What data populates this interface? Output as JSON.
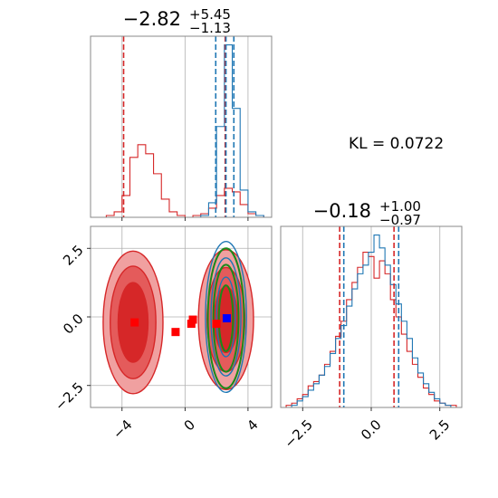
{
  "colors": {
    "red": "#d62728",
    "blue": "#1f77b4",
    "green": "#1a8a1a",
    "blue_marker": "#0000ff",
    "red_marker": "#ff0000",
    "grid": "#b0b0b0"
  },
  "annotation": {
    "kl_text": "KL = 0.0722"
  },
  "chart_data": [
    {
      "type": "histogram",
      "panel": "top-left marginal (parameter 1)",
      "title": {
        "value": "−2.82",
        "upper": "+5.45",
        "lower": "−1.13"
      },
      "xlim": [
        -6,
        5.5
      ],
      "grid": true,
      "series": [
        {
          "color": "red",
          "bin_edges": [
            -6,
            -5.5,
            -5,
            -4.5,
            -4,
            -3.5,
            -3,
            -2.5,
            -2,
            -1.5,
            -1,
            -0.5,
            0,
            0.5,
            1,
            1.5,
            2,
            2.5,
            3,
            3.5,
            4,
            4.5,
            5,
            5.5
          ],
          "counts": [
            0,
            0,
            1,
            3,
            12,
            33,
            40,
            35,
            24,
            10,
            3,
            1,
            0,
            1,
            2,
            5,
            12,
            16,
            14,
            7,
            2,
            1,
            0
          ]
        },
        {
          "color": "blue",
          "bin_edges": [
            -6,
            -5.5,
            -5,
            -4.5,
            -4,
            -3.5,
            -3,
            -2.5,
            -2,
            -1.5,
            -1,
            -0.5,
            0,
            0.5,
            1,
            1.5,
            2,
            2.5,
            3,
            3.5,
            4,
            4.5,
            5,
            5.5
          ],
          "counts": [
            0,
            0,
            0,
            0,
            0,
            0,
            0,
            0,
            0,
            0,
            0,
            0,
            0,
            0,
            1,
            8,
            50,
            95,
            60,
            15,
            3,
            1,
            0
          ]
        }
      ],
      "vlines": [
        {
          "color": "red",
          "x": -3.9
        },
        {
          "color": "red",
          "x": 2.55
        },
        {
          "color": "blue",
          "x": 1.95
        },
        {
          "color": "blue",
          "x": 2.6
        },
        {
          "color": "blue",
          "x": 3.1
        }
      ]
    },
    {
      "type": "contour",
      "panel": "bottom-left 2D (parameter 1 vs parameter 2)",
      "xlim": [
        -6,
        5.5
      ],
      "ylim": [
        -3.3,
        3.3
      ],
      "xticks": [
        "−4",
        "0",
        "4"
      ],
      "xtick_values": [
        -4,
        0,
        4
      ],
      "yticks": [
        "−2.5",
        "0.0",
        "2.5"
      ],
      "ytick_values": [
        -2.5,
        0,
        2.5
      ],
      "grid": true,
      "red_contours": [
        {
          "cx": -3.3,
          "cy": -0.2,
          "rx": 1.9,
          "ry": 2.6,
          "fill": "#f0a0a0"
        },
        {
          "cx": -3.3,
          "cy": -0.2,
          "rx": 1.45,
          "ry": 2.05,
          "fill": "#e45b5b"
        },
        {
          "cx": -3.3,
          "cy": -0.2,
          "rx": 0.95,
          "ry": 1.45,
          "fill": "#d62728"
        },
        {
          "cx": 2.6,
          "cy": -0.1,
          "rx": 1.75,
          "ry": 2.55,
          "fill": "#f0a0a0"
        },
        {
          "cx": 2.6,
          "cy": -0.1,
          "rx": 1.2,
          "ry": 1.9,
          "fill": "#e45b5b"
        },
        {
          "cx": 2.6,
          "cy": -0.1,
          "rx": 0.75,
          "ry": 1.2,
          "fill": "#d62728"
        }
      ],
      "blue_contours": [
        {
          "cx": 2.6,
          "cy": 0.0,
          "rx": 1.3,
          "ry": 2.75
        },
        {
          "cx": 2.6,
          "cy": 0.0,
          "rx": 0.95,
          "ry": 2.15
        },
        {
          "cx": 2.6,
          "cy": 0.0,
          "rx": 0.6,
          "ry": 1.45
        }
      ],
      "green_ellipses": [
        {
          "cx": 2.6,
          "cy": -0.05,
          "rx": 1.15,
          "ry": 2.55
        },
        {
          "cx": 2.6,
          "cy": -0.05,
          "rx": 0.8,
          "ry": 1.95
        },
        {
          "cx": 2.6,
          "cy": -0.05,
          "rx": 0.45,
          "ry": 1.2
        }
      ],
      "red_markers": [
        {
          "x": -3.2,
          "y": -0.2
        },
        {
          "x": -0.6,
          "y": -0.55
        },
        {
          "x": 0.4,
          "y": -0.25
        },
        {
          "x": 0.5,
          "y": -0.1
        },
        {
          "x": 2.0,
          "y": -0.25
        }
      ],
      "blue_marker": {
        "x": 2.65,
        "y": -0.05
      }
    },
    {
      "type": "histogram",
      "panel": "bottom-right marginal (parameter 2)",
      "title": {
        "value": "−0.18",
        "upper": "+1.00",
        "lower": "−0.97"
      },
      "xlim": [
        -3.3,
        3.3
      ],
      "xticks": [
        "−2.5",
        "0.0",
        "2.5"
      ],
      "xtick_values": [
        -2.5,
        0,
        2.5
      ],
      "grid": true,
      "series": [
        {
          "color": "red",
          "bin_edges": [
            -3.3,
            -3.1,
            -2.9,
            -2.7,
            -2.5,
            -2.3,
            -2.1,
            -1.9,
            -1.7,
            -1.5,
            -1.3,
            -1.1,
            -0.9,
            -0.7,
            -0.5,
            -0.3,
            -0.1,
            0.1,
            0.3,
            0.5,
            0.7,
            0.9,
            1.1,
            1.3,
            1.5,
            1.7,
            1.9,
            2.1,
            2.3,
            2.5,
            2.7,
            2.9,
            3.1,
            3.3
          ],
          "counts": [
            0,
            1,
            2,
            4,
            6,
            10,
            12,
            15,
            20,
            26,
            33,
            40,
            50,
            58,
            65,
            72,
            70,
            60,
            68,
            62,
            50,
            42,
            34,
            26,
            20,
            14,
            9,
            6,
            3,
            2,
            1,
            1,
            0
          ]
        },
        {
          "color": "blue",
          "bin_edges": [
            -3.3,
            -3.1,
            -2.9,
            -2.7,
            -2.5,
            -2.3,
            -2.1,
            -1.9,
            -1.7,
            -1.5,
            -1.3,
            -1.1,
            -0.9,
            -0.7,
            -0.5,
            -0.3,
            -0.1,
            0.1,
            0.3,
            0.5,
            0.7,
            0.9,
            1.1,
            1.3,
            1.5,
            1.7,
            1.9,
            2.1,
            2.3,
            2.5,
            2.7,
            2.9,
            3.1,
            3.3
          ],
          "counts": [
            0,
            0,
            1,
            3,
            5,
            8,
            11,
            15,
            19,
            25,
            32,
            38,
            47,
            55,
            62,
            66,
            72,
            80,
            74,
            66,
            57,
            48,
            40,
            32,
            23,
            16,
            11,
            7,
            4,
            2,
            1,
            0,
            0
          ]
        }
      ],
      "vlines": [
        {
          "color": "red",
          "x": -1.15
        },
        {
          "color": "blue",
          "x": -1.0
        },
        {
          "color": "red",
          "x": 0.83
        },
        {
          "color": "blue",
          "x": 1.0
        }
      ]
    }
  ]
}
